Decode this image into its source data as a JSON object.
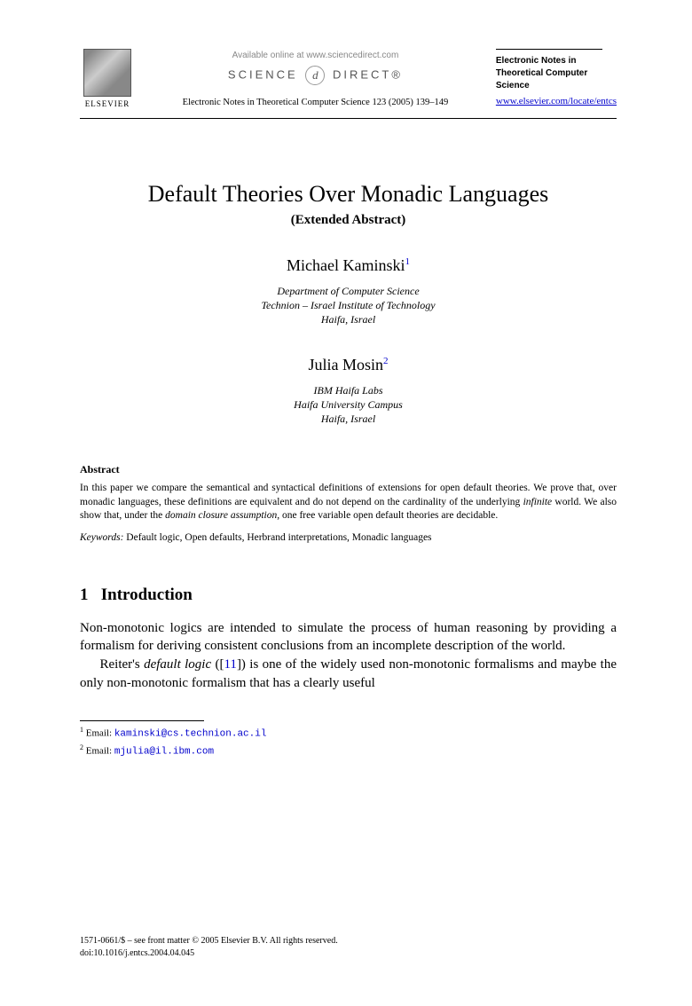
{
  "header": {
    "publisher_name": "ELSEVIER",
    "available_text": "Available online at www.sciencedirect.com",
    "science_direct_left": "SCIENCE",
    "science_direct_d": "d",
    "science_direct_right": "DIRECT®",
    "journal_reference": "Electronic Notes in Theoretical Computer Science 123 (2005) 139–149",
    "journal_name_l1": "Electronic Notes in",
    "journal_name_l2": "Theoretical Computer",
    "journal_name_l3": "Science",
    "journal_url": "www.elsevier.com/locate/entcs"
  },
  "title": "Default Theories Over Monadic Languages",
  "subtitle": "(Extended Abstract)",
  "authors": [
    {
      "name": "Michael Kaminski",
      "sup": "1",
      "affil_l1": "Department of Computer Science",
      "affil_l2": "Technion – Israel Institute of Technology",
      "affil_l3": "Haifa, Israel"
    },
    {
      "name": "Julia Mosin",
      "sup": "2",
      "affil_l1": "IBM Haifa Labs",
      "affil_l2": "Haifa University Campus",
      "affil_l3": "Haifa, Israel"
    }
  ],
  "abstract": {
    "heading": "Abstract",
    "text_pre": "In this paper we compare the semantical and syntactical definitions of extensions for open default theories. We prove that, over monadic languages, these definitions are equivalent and do not depend on the cardinality of the underlying ",
    "italic1": "infinite",
    "text_mid": " world. We also show that, under the ",
    "italic2": "domain closure assumption",
    "text_post": ", one free variable open default theories are decidable."
  },
  "keywords": {
    "label": "Keywords:",
    "text": "  Default logic, Open defaults, Herbrand interpretations, Monadic languages"
  },
  "section1": {
    "number": "1",
    "title": "Introduction"
  },
  "body": {
    "p1": "Non-monotonic logics are intended to simulate the process of human reasoning by providing a formalism for deriving consistent conclusions from an incomplete description of the world.",
    "p2_pre": "Reiter's ",
    "p2_italic": "default logic",
    "p2_mid": " ([",
    "p2_ref": "11",
    "p2_post": "]) is one of the widely used non-monotonic formalisms and maybe the only non-monotonic formalism that has a clearly useful"
  },
  "footnotes": {
    "f1_sup": "1",
    "f1_label": " Email: ",
    "f1_email": "kaminski@cs.technion.ac.il",
    "f2_sup": "2",
    "f2_label": " Email: ",
    "f2_email": "mjulia@il.ibm.com"
  },
  "footer": {
    "line1": "1571-0661/$ – see front matter © 2005 Elsevier B.V. All rights reserved.",
    "line2": "doi:10.1016/j.entcs.2004.04.045"
  },
  "colors": {
    "link": "#0000cc",
    "text": "#000000",
    "muted": "#888888"
  }
}
